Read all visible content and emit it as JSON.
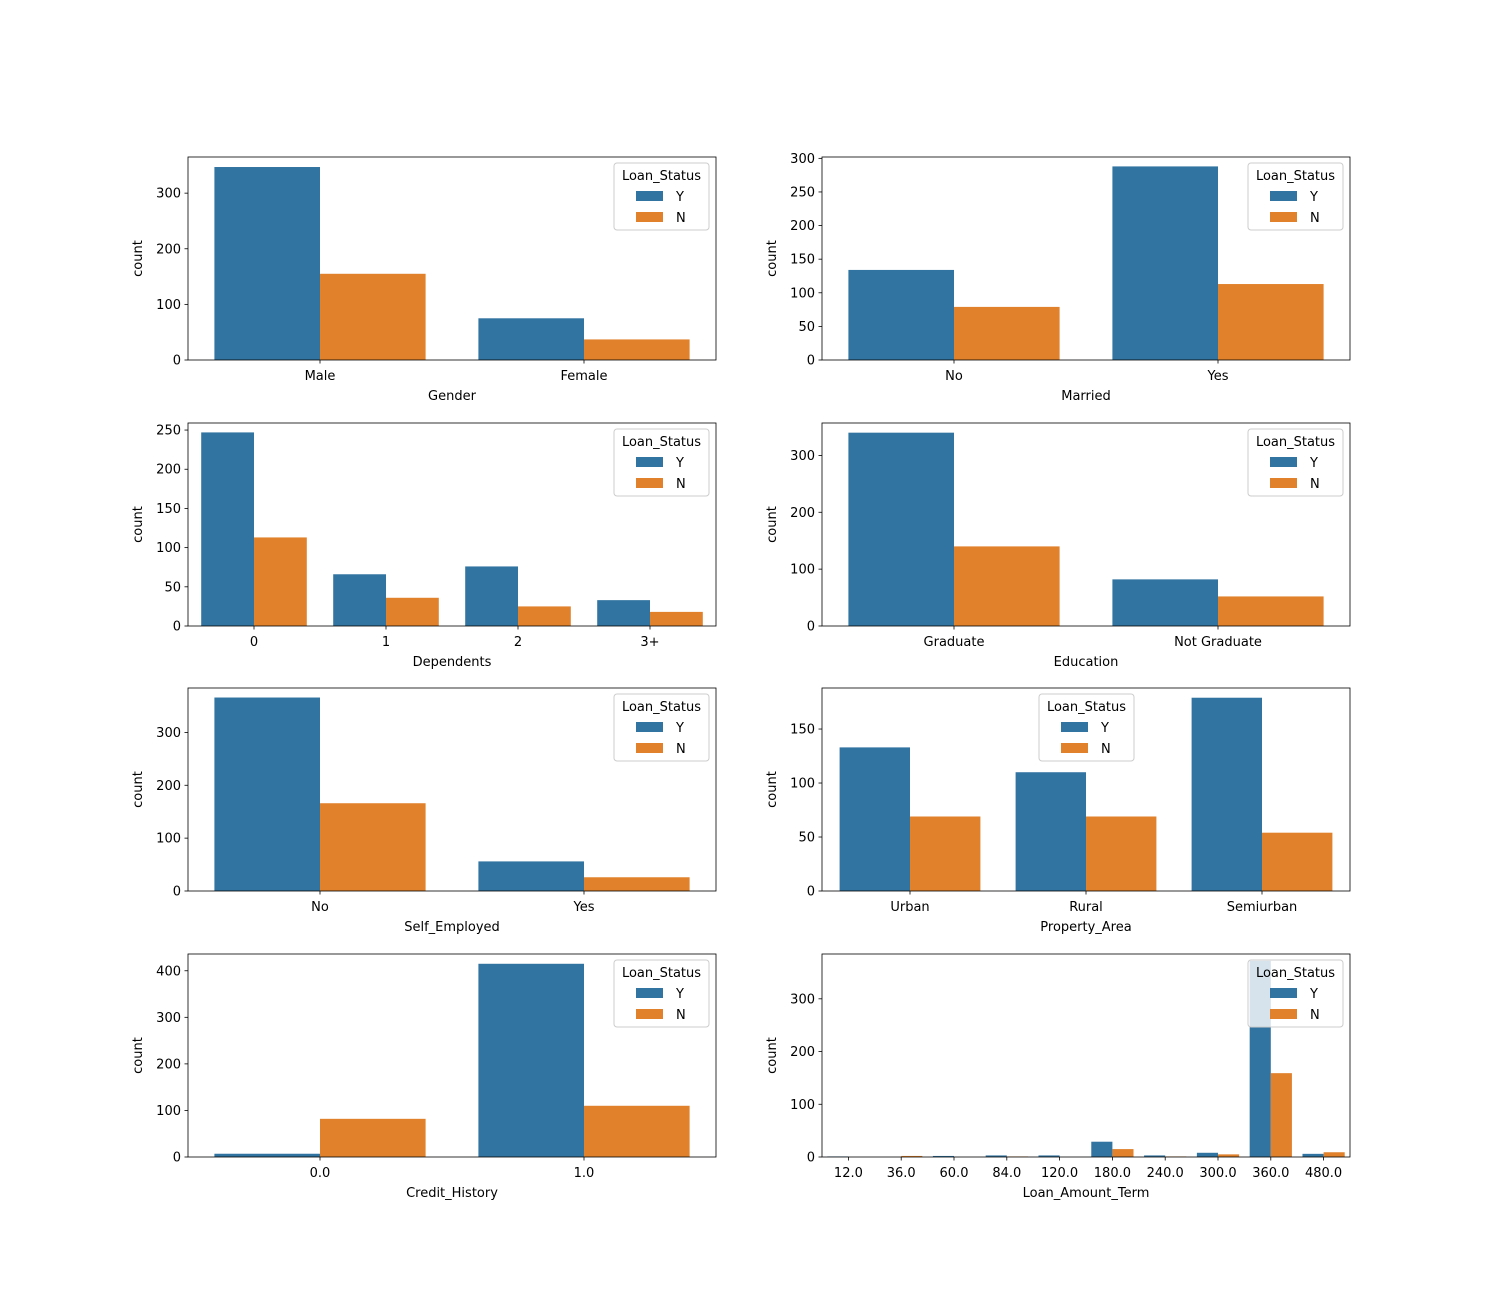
{
  "legend_title": "Loan_Status",
  "colors": {
    "Y": "#3274a1",
    "N": "#e1812c"
  },
  "chart_data": [
    {
      "type": "bar",
      "xlabel": "Gender",
      "ylabel": "count",
      "categories": [
        "Male",
        "Female"
      ],
      "series": [
        {
          "name": "Y",
          "values": [
            347,
            75
          ]
        },
        {
          "name": "N",
          "values": [
            155,
            37
          ]
        }
      ],
      "ylim": [
        0,
        365
      ],
      "yticks": [
        0,
        100,
        200,
        300
      ],
      "legend_title": "Loan_Status",
      "legend_position": "top-right",
      "grid": false
    },
    {
      "type": "bar",
      "xlabel": "Married",
      "ylabel": "count",
      "categories": [
        "No",
        "Yes"
      ],
      "series": [
        {
          "name": "Y",
          "values": [
            134,
            288
          ]
        },
        {
          "name": "N",
          "values": [
            79,
            113
          ]
        }
      ],
      "ylim": [
        0,
        302
      ],
      "yticks": [
        0,
        50,
        100,
        150,
        200,
        250,
        300
      ],
      "legend_title": "Loan_Status",
      "legend_position": "top-right",
      "grid": false
    },
    {
      "type": "bar",
      "xlabel": "Dependents",
      "ylabel": "count",
      "categories": [
        "0",
        "1",
        "2",
        "3+"
      ],
      "series": [
        {
          "name": "Y",
          "values": [
            247,
            66,
            76,
            33
          ]
        },
        {
          "name": "N",
          "values": [
            113,
            36,
            25,
            18
          ]
        }
      ],
      "ylim": [
        0,
        259
      ],
      "yticks": [
        0,
        50,
        100,
        150,
        200,
        250
      ],
      "legend_title": "Loan_Status",
      "legend_position": "top-right",
      "grid": false
    },
    {
      "type": "bar",
      "xlabel": "Education",
      "ylabel": "count",
      "categories": [
        "Graduate",
        "Not Graduate"
      ],
      "series": [
        {
          "name": "Y",
          "values": [
            340,
            82
          ]
        },
        {
          "name": "N",
          "values": [
            140,
            52
          ]
        }
      ],
      "ylim": [
        0,
        357
      ],
      "yticks": [
        0,
        100,
        200,
        300
      ],
      "legend_title": "Loan_Status",
      "legend_position": "top-right",
      "grid": false
    },
    {
      "type": "bar",
      "xlabel": "Self_Employed",
      "ylabel": "count",
      "categories": [
        "No",
        "Yes"
      ],
      "series": [
        {
          "name": "Y",
          "values": [
            366,
            56
          ]
        },
        {
          "name": "N",
          "values": [
            166,
            26
          ]
        }
      ],
      "ylim": [
        0,
        384
      ],
      "yticks": [
        0,
        100,
        200,
        300
      ],
      "legend_title": "Loan_Status",
      "legend_position": "top-right",
      "grid": false
    },
    {
      "type": "bar",
      "xlabel": "Property_Area",
      "ylabel": "count",
      "categories": [
        "Urban",
        "Rural",
        "Semiurban"
      ],
      "series": [
        {
          "name": "Y",
          "values": [
            133,
            110,
            179
          ]
        },
        {
          "name": "N",
          "values": [
            69,
            69,
            54
          ]
        }
      ],
      "ylim": [
        0,
        188
      ],
      "yticks": [
        0,
        50,
        100,
        150
      ],
      "legend_title": "Loan_Status",
      "legend_position": "upper center",
      "grid": false
    },
    {
      "type": "bar",
      "xlabel": "Credit_History",
      "ylabel": "count",
      "categories": [
        "0.0",
        "1.0"
      ],
      "series": [
        {
          "name": "Y",
          "values": [
            7,
            415
          ]
        },
        {
          "name": "N",
          "values": [
            82,
            110
          ]
        }
      ],
      "ylim": [
        0,
        436
      ],
      "yticks": [
        0,
        100,
        200,
        300,
        400
      ],
      "legend_title": "Loan_Status",
      "legend_position": "top-right",
      "grid": false
    },
    {
      "type": "bar",
      "xlabel": "Loan_Amount_Term",
      "ylabel": "count",
      "categories": [
        "12.0",
        "36.0",
        "60.0",
        "84.0",
        "120.0",
        "180.0",
        "240.0",
        "300.0",
        "360.0",
        "480.0"
      ],
      "series": [
        {
          "name": "Y",
          "values": [
            1,
            0,
            2,
            3,
            3,
            29,
            3,
            8,
            372,
            6
          ]
        },
        {
          "name": "N",
          "values": [
            0,
            2,
            0,
            1,
            0,
            15,
            1,
            5,
            159,
            9
          ]
        }
      ],
      "ylim": [
        0,
        385
      ],
      "yticks": [
        0,
        100,
        200,
        300
      ],
      "legend_title": "Loan_Status",
      "legend_position": "top-right",
      "grid": false
    }
  ]
}
